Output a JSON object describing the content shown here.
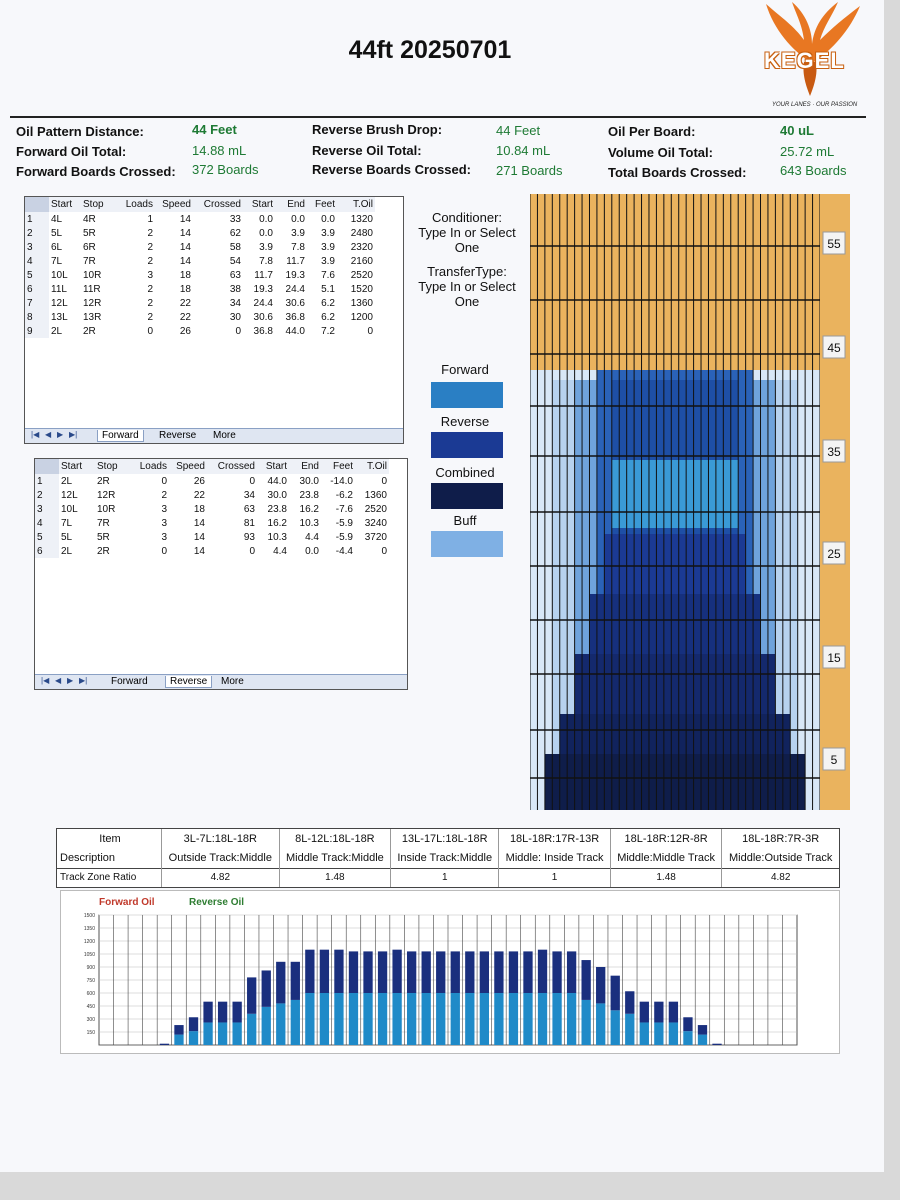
{
  "title": "44ft 20250701",
  "logo": {
    "word": "KEGEL",
    "tagline": "YOUR LANES · OUR PASSION"
  },
  "summary": [
    [
      {
        "label": "Oil Pattern Distance:",
        "value": "44 Feet"
      },
      {
        "label": "Reverse Brush Drop:",
        "value": "44 Feet"
      },
      {
        "label": "Oil Per Board:",
        "value": "40 uL"
      }
    ],
    [
      {
        "label": "Forward Oil Total:",
        "value": "14.88 mL"
      },
      {
        "label": "Reverse Oil Total:",
        "value": "10.84 mL"
      },
      {
        "label": "Volume Oil Total:",
        "value": "25.72 mL"
      }
    ],
    [
      {
        "label": "Forward Boards Crossed:",
        "value": "372 Boards"
      },
      {
        "label": "Reverse Boards Crossed:",
        "value": "271 Boards"
      },
      {
        "label": "Total Boards Crossed:",
        "value": "643 Boards"
      }
    ]
  ],
  "grid_headers": [
    "Start",
    "Stop",
    "Loads",
    "Speed",
    "Crossed",
    "Start",
    "End",
    "Feet",
    "T.Oil"
  ],
  "forward_grid": [
    [
      "1",
      "4L",
      "4R",
      "1",
      "14",
      "33",
      "0.0",
      "0.0",
      "0.0",
      "1320"
    ],
    [
      "2",
      "5L",
      "5R",
      "2",
      "14",
      "62",
      "0.0",
      "3.9",
      "3.9",
      "2480"
    ],
    [
      "3",
      "6L",
      "6R",
      "2",
      "14",
      "58",
      "3.9",
      "7.8",
      "3.9",
      "2320"
    ],
    [
      "4",
      "7L",
      "7R",
      "2",
      "14",
      "54",
      "7.8",
      "11.7",
      "3.9",
      "2160"
    ],
    [
      "5",
      "10L",
      "10R",
      "3",
      "18",
      "63",
      "11.7",
      "19.3",
      "7.6",
      "2520"
    ],
    [
      "6",
      "11L",
      "11R",
      "2",
      "18",
      "38",
      "19.3",
      "24.4",
      "5.1",
      "1520"
    ],
    [
      "7",
      "12L",
      "12R",
      "2",
      "22",
      "34",
      "24.4",
      "30.6",
      "6.2",
      "1360"
    ],
    [
      "8",
      "13L",
      "13R",
      "2",
      "22",
      "30",
      "30.6",
      "36.8",
      "6.2",
      "1200"
    ],
    [
      "9",
      "2L",
      "2R",
      "0",
      "26",
      "0",
      "36.8",
      "44.0",
      "7.2",
      "0"
    ]
  ],
  "reverse_grid": [
    [
      "1",
      "2L",
      "2R",
      "0",
      "26",
      "0",
      "44.0",
      "30.0",
      "-14.0",
      "0"
    ],
    [
      "2",
      "12L",
      "12R",
      "2",
      "22",
      "34",
      "30.0",
      "23.8",
      "-6.2",
      "1360"
    ],
    [
      "3",
      "10L",
      "10R",
      "3",
      "18",
      "63",
      "23.8",
      "16.2",
      "-7.6",
      "2520"
    ],
    [
      "4",
      "7L",
      "7R",
      "3",
      "14",
      "81",
      "16.2",
      "10.3",
      "-5.9",
      "3240"
    ],
    [
      "5",
      "5L",
      "5R",
      "3",
      "14",
      "93",
      "10.3",
      "4.4",
      "-5.9",
      "3720"
    ],
    [
      "6",
      "2L",
      "2R",
      "0",
      "14",
      "0",
      "4.4",
      "0.0",
      "-4.4",
      "0"
    ]
  ],
  "tabs": [
    "Forward",
    "Reverse",
    "More"
  ],
  "nav_glyphs": [
    "|◀",
    "◀",
    "▶",
    "▶|"
  ],
  "conditioner": [
    "Conditioner:",
    "Type In or Select",
    "One"
  ],
  "transfer": [
    "TransferType:",
    "Type In or Select",
    "One"
  ],
  "legend": [
    {
      "label": "Forward",
      "color": "#2a7fc4"
    },
    {
      "label": "Reverse",
      "color": "#1b3a94"
    },
    {
      "label": "Combined",
      "color": "#0f1d4a"
    },
    {
      "label": "Buff",
      "color": "#7fb0e4"
    }
  ],
  "lane_markers": [
    "55",
    "45",
    "35",
    "25",
    "15",
    "5"
  ],
  "zone_table": {
    "row_labels": [
      "Item",
      "Description",
      "Track Zone Ratio"
    ],
    "columns": [
      {
        "item": "3L-7L:18L-18R",
        "desc": "Outside Track:Middle",
        "ratio": "4.82"
      },
      {
        "item": "8L-12L:18L-18R",
        "desc": "Middle Track:Middle",
        "ratio": "1.48"
      },
      {
        "item": "13L-17L:18L-18R",
        "desc": "Inside Track:Middle",
        "ratio": "1"
      },
      {
        "item": "18L-18R:17R-13R",
        "desc": "Middle: Inside Track",
        "ratio": "1"
      },
      {
        "item": "18L-18R:12R-8R",
        "desc": "Middle:Middle Track",
        "ratio": "1.48"
      },
      {
        "item": "18L-18R:7R-3R",
        "desc": "Middle:Outside Track",
        "ratio": "4.82"
      }
    ]
  },
  "chart_data": {
    "type": "bar",
    "legend": [
      {
        "name": "Forward Oil",
        "color": "#c0392b"
      },
      {
        "name": "Reverse Oil",
        "color": "#2e7d32"
      }
    ],
    "y_ticks": [
      "1500",
      "1350",
      "1200",
      "1050",
      "900",
      "750",
      "600",
      "450",
      "300",
      "150"
    ],
    "ylim": [
      0,
      1500
    ],
    "series": [
      {
        "name": "Forward Oil",
        "color": "#1f8ac8",
        "values": [
          0,
          0,
          0,
          0,
          0,
          120,
          160,
          260,
          260,
          260,
          360,
          440,
          480,
          520,
          600,
          600,
          600,
          600,
          600,
          600,
          600,
          600,
          600,
          600,
          600,
          600,
          600,
          600,
          600,
          600,
          600,
          600,
          600,
          520,
          480,
          400,
          360,
          260,
          260,
          260,
          160,
          120,
          0,
          0,
          0,
          0,
          0,
          0
        ]
      },
      {
        "name": "Reverse Oil",
        "color": "#1a2f7e",
        "values": [
          0,
          0,
          0,
          0,
          15,
          110,
          160,
          240,
          240,
          240,
          420,
          420,
          480,
          440,
          500,
          500,
          500,
          480,
          480,
          480,
          500,
          480,
          480,
          480,
          480,
          480,
          480,
          480,
          480,
          480,
          500,
          480,
          480,
          460,
          420,
          400,
          260,
          240,
          240,
          240,
          160,
          110,
          15,
          0,
          0,
          0,
          0,
          0
        ]
      }
    ]
  }
}
